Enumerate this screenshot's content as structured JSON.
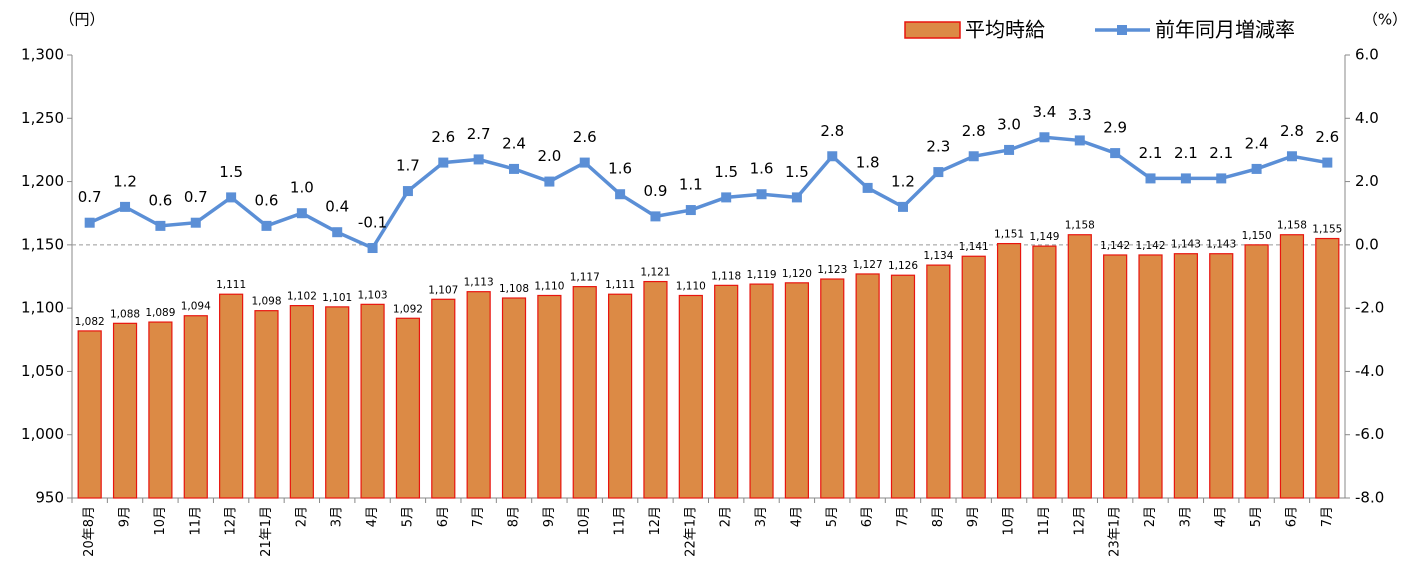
{
  "chart_data": {
    "type": "bar_line",
    "y_unit": "（円）",
    "y2_unit": "（%）",
    "categories": [
      "20年8月",
      "9月",
      "10月",
      "11月",
      "12月",
      "21年1月",
      "2月",
      "3月",
      "4月",
      "5月",
      "6月",
      "7月",
      "8月",
      "9月",
      "10月",
      "11月",
      "12月",
      "22年1月",
      "2月",
      "3月",
      "4月",
      "5月",
      "6月",
      "7月",
      "8月",
      "9月",
      "10月",
      "11月",
      "12月",
      "23年1月",
      "2月",
      "3月",
      "4月",
      "5月",
      "6月",
      "7月"
    ],
    "series": [
      {
        "name": "平均時給",
        "type": "bar",
        "color": "#dc8a45",
        "edge_color": "#e8150f",
        "axis": "y",
        "values": [
          1082,
          1088,
          1089,
          1094,
          1111,
          1098,
          1102,
          1101,
          1103,
          1092,
          1107,
          1113,
          1108,
          1110,
          1117,
          1111,
          1121,
          1110,
          1118,
          1119,
          1120,
          1123,
          1127,
          1126,
          1134,
          1141,
          1151,
          1149,
          1158,
          1142,
          1142,
          1143,
          1143,
          1150,
          1158,
          1155
        ],
        "value_labels": [
          "1,082",
          "1,088",
          "1,089",
          "1,094",
          "1,111",
          "1,098",
          "1,102",
          "1,101",
          "1,103",
          "1,092",
          "1,107",
          "1,113",
          "1,108",
          "1,110",
          "1,117",
          "1,111",
          "1,121",
          "1,110",
          "1,118",
          "1,119",
          "1,120",
          "1,123",
          "1,127",
          "1,126",
          "1,134",
          "1,141",
          "1,151",
          "1,149",
          "1,158",
          "1,142",
          "1,142",
          "1,143",
          "1,143",
          "1,150",
          "1,158",
          "1,155"
        ]
      },
      {
        "name": "前年同月増減率",
        "type": "line",
        "color": "#5b8fd6",
        "axis": "y2",
        "values": [
          0.7,
          1.2,
          0.6,
          0.7,
          1.5,
          0.6,
          1.0,
          0.4,
          -0.1,
          1.7,
          2.6,
          2.7,
          2.4,
          2.0,
          2.6,
          1.6,
          0.9,
          1.1,
          1.5,
          1.6,
          1.5,
          2.8,
          1.8,
          1.2,
          2.3,
          2.8,
          3.0,
          3.4,
          3.3,
          2.9,
          2.1,
          2.1,
          2.1,
          2.4,
          2.8,
          2.6
        ],
        "value_labels": [
          "0.7",
          "1.2",
          "0.6",
          "0.7",
          "1.5",
          "0.6",
          "1.0",
          "0.4",
          "-0.1",
          "1.7",
          "2.6",
          "2.7",
          "2.4",
          "2.0",
          "2.6",
          "1.6",
          "0.9",
          "1.1",
          "1.5",
          "1.6",
          "1.5",
          "2.8",
          "1.8",
          "1.2",
          "2.3",
          "2.8",
          "3.0",
          "3.4",
          "3.3",
          "2.9",
          "2.1",
          "2.1",
          "2.1",
          "2.4",
          "2.8",
          "2.6"
        ]
      }
    ],
    "ylim": [
      950,
      1300
    ],
    "yticks": [
      950,
      {
        "value": 1000,
        "label": "1,000"
      },
      {
        "value": 1050,
        "label": "1,050"
      },
      {
        "value": 1100,
        "label": "1,100"
      },
      {
        "value": 1150,
        "label": "1,150"
      },
      {
        "value": 1200,
        "label": "1,200"
      },
      {
        "value": 1250,
        "label": "1,250"
      },
      {
        "value": 1300,
        "label": "1,300"
      }
    ],
    "y2lim": [
      -8,
      6
    ],
    "y2ticks": [
      {
        "value": -8,
        "label": "-8.0"
      },
      {
        "value": -6,
        "label": "-6.0"
      },
      {
        "value": -4,
        "label": "-4.0"
      },
      {
        "value": -2,
        "label": "-2.0"
      },
      {
        "value": 0,
        "label": "0.0"
      },
      {
        "value": 2,
        "label": "2.0"
      },
      {
        "value": 4,
        "label": "4.0"
      },
      {
        "value": 6,
        "label": "6.0"
      }
    ],
    "y2_zero_line": true,
    "legend": "top-right"
  }
}
